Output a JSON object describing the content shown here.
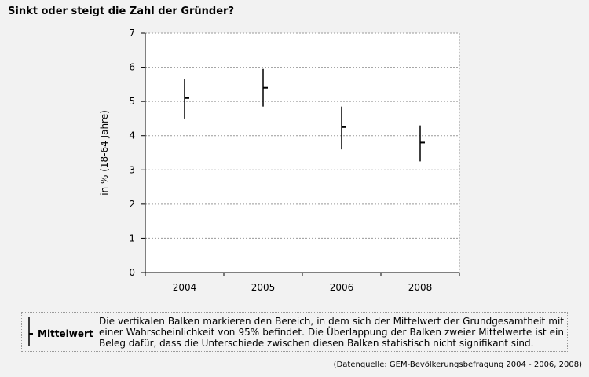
{
  "title": "Sinkt oder steigt die Zahl der Gründer?",
  "chart_data": {
    "type": "errorbar",
    "categories": [
      "2004",
      "2005",
      "2006",
      "2008"
    ],
    "series": [
      {
        "means": [
          5.1,
          5.4,
          4.25,
          3.8
        ],
        "lower": [
          4.5,
          4.85,
          3.6,
          3.25
        ],
        "upper": [
          5.65,
          5.95,
          4.85,
          4.3
        ]
      }
    ],
    "ylabel": "in %  (18-64 Jahre)",
    "ylim": [
      0,
      7
    ],
    "yticks": [
      "0",
      "1",
      "2",
      "3",
      "4",
      "5",
      "6",
      "7"
    ],
    "grid": true,
    "colors": {
      "mark": "#000000",
      "grid": "#999999",
      "background": "#f2f2f2"
    }
  },
  "legend": {
    "mean_label": "Mittelwert",
    "description": "Die vertikalen Balken markieren den Bereich, in dem sich der Mittelwert der Grundgesamtheit mit einer Wahrscheinlichkeit von 95% befindet. Die Überlappung der Balken zweier Mittelwerte ist ein Beleg dafür, dass die Unterschiede zwischen diesen Balken statistisch nicht signifikant sind."
  },
  "source": "(Datenquelle: GEM-Bevölkerungsbefragung 2004 - 2006, 2008)"
}
